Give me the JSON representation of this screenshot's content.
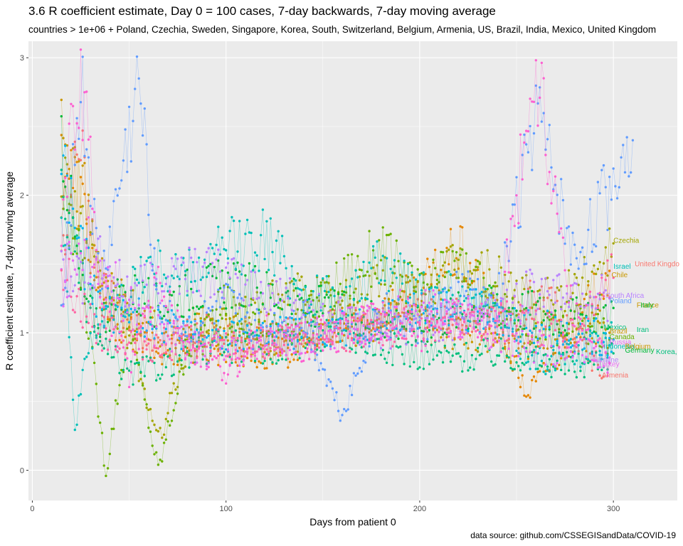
{
  "chart_data": {
    "type": "scatter",
    "title": "3.6 R coefficient estimate, Day 0 = 100 cases, 7-day backwards, 7-day moving average",
    "subtitle": "countries > 1e+06 + Poland, Czechia, Sweden, Singapore, Korea, South, Switzerland, Belgium, Armenia, US, Brazil, India, Mexico, United Kingdom",
    "caption": "data source: github.com/CSSEGISandData/COVID-19",
    "xlabel": "Days from patient 0",
    "ylabel": "R coefficient estimate, 7-day moving average",
    "xlim": [
      -2,
      333
    ],
    "ylim": [
      -0.22,
      3.12
    ],
    "x_ticks": [
      0,
      100,
      200,
      300
    ],
    "y_ticks": [
      0,
      1,
      2,
      3
    ],
    "grid": true,
    "legend": "none",
    "series": [
      {
        "color": "#F8766D",
        "x": [
          15,
          25,
          35,
          50,
          65,
          80,
          100,
          120,
          140,
          160,
          180,
          200,
          220,
          240,
          260,
          280,
          295
        ],
        "y": [
          1.6,
          2.4,
          1.3,
          1.1,
          0.9,
          1.0,
          1.0,
          0.95,
          1.05,
          1.1,
          1.05,
          1.2,
          1.1,
          1.0,
          1.3,
          1.0,
          0.68
        ]
      },
      {
        "color": "#E58700",
        "x": [
          15,
          25,
          35,
          50,
          65,
          80,
          100,
          120,
          140,
          160,
          180,
          200,
          220,
          240,
          255,
          275,
          298
        ],
        "y": [
          2.3,
          2.0,
          1.2,
          1.0,
          0.85,
          0.9,
          0.88,
          0.82,
          0.9,
          1.0,
          1.15,
          1.3,
          1.6,
          1.1,
          0.55,
          0.9,
          1.45
        ]
      },
      {
        "color": "#C99800",
        "x": [
          15,
          25,
          35,
          50,
          65,
          80,
          100,
          120,
          140,
          160,
          180,
          200,
          220,
          240,
          260,
          280,
          298
        ],
        "y": [
          2.4,
          2.1,
          1.4,
          1.2,
          1.0,
          1.1,
          1.0,
          0.95,
          1.0,
          1.05,
          1.1,
          1.05,
          1.0,
          0.9,
          0.95,
          1.0,
          1.0
        ]
      },
      {
        "color": "#A3A500",
        "x": [
          15,
          25,
          35,
          50,
          65,
          80,
          100,
          120,
          140,
          160,
          180,
          200,
          220,
          240,
          260,
          280,
          300
        ],
        "y": [
          2.2,
          1.8,
          1.3,
          1.0,
          0.2,
          0.9,
          1.1,
          1.2,
          1.3,
          1.2,
          1.4,
          1.25,
          1.5,
          1.4,
          1.2,
          1.3,
          1.65
        ]
      },
      {
        "color": "#6BB100",
        "x": [
          15,
          25,
          38,
          50,
          65,
          80,
          100,
          120,
          140,
          160,
          180,
          200,
          220,
          240,
          260,
          280,
          298
        ],
        "y": [
          1.9,
          1.5,
          0.0,
          1.1,
          0.0,
          0.9,
          1.2,
          1.0,
          1.1,
          1.4,
          1.6,
          1.3,
          1.5,
          1.2,
          1.0,
          1.1,
          0.95
        ]
      },
      {
        "color": "#00BA38",
        "x": [
          15,
          25,
          35,
          50,
          65,
          80,
          100,
          120,
          140,
          160,
          180,
          200,
          220,
          240,
          260,
          280,
          300
        ],
        "y": [
          2.5,
          1.3,
          1.1,
          1.3,
          1.2,
          1.3,
          1.35,
          1.3,
          1.2,
          1.15,
          1.1,
          1.05,
          1.15,
          1.2,
          1.15,
          1.1,
          1.18
        ]
      },
      {
        "color": "#00BF7D",
        "x": [
          15,
          25,
          35,
          50,
          65,
          80,
          100,
          120,
          140,
          160,
          180,
          200,
          220,
          240,
          260,
          280,
          300
        ],
        "y": [
          2.0,
          1.4,
          0.9,
          0.7,
          0.75,
          0.85,
          0.9,
          0.88,
          0.95,
          1.0,
          0.9,
          0.85,
          0.82,
          0.85,
          0.8,
          0.75,
          0.85
        ]
      },
      {
        "color": "#00C0B8",
        "x": [
          15,
          22,
          30,
          45,
          60,
          80,
          100,
          120,
          140,
          160,
          180,
          200,
          220,
          240,
          260,
          280,
          300
        ],
        "y": [
          2.1,
          0.3,
          1.0,
          1.2,
          1.5,
          1.4,
          1.6,
          1.7,
          1.3,
          1.2,
          1.5,
          1.35,
          1.3,
          1.1,
          0.8,
          0.85,
          0.95
        ]
      },
      {
        "color": "#00B4EF",
        "x": [
          15,
          25,
          35,
          50,
          65,
          80,
          100,
          120,
          140,
          160,
          180,
          200,
          220,
          240,
          260,
          280,
          300
        ],
        "y": [
          2.3,
          1.6,
          1.2,
          1.1,
          1.1,
          1.0,
          0.95,
          1.0,
          1.0,
          1.05,
          1.1,
          1.15,
          1.2,
          1.1,
          1.05,
          1.0,
          0.95
        ]
      },
      {
        "color": "#619CFF",
        "x": [
          15,
          25,
          35,
          55,
          65,
          80,
          100,
          120,
          140,
          160,
          180,
          200,
          220,
          240,
          260,
          280,
          310
        ],
        "y": [
          1.2,
          2.8,
          1.3,
          2.8,
          1.2,
          1.0,
          1.2,
          1.0,
          1.1,
          0.4,
          1.2,
          1.0,
          1.3,
          1.2,
          2.6,
          1.5,
          2.4
        ]
      },
      {
        "color": "#B983FF",
        "x": [
          15,
          25,
          35,
          50,
          65,
          80,
          100,
          120,
          140,
          160,
          180,
          200,
          220,
          240,
          260,
          280,
          298
        ],
        "y": [
          1.5,
          1.4,
          1.5,
          1.3,
          1.4,
          1.5,
          1.4,
          1.3,
          1.2,
          1.1,
          1.0,
          1.05,
          1.1,
          1.2,
          1.3,
          1.3,
          1.25
        ]
      },
      {
        "color": "#E76BF3",
        "x": [
          15,
          25,
          35,
          50,
          65,
          80,
          100,
          120,
          140,
          160,
          180,
          200,
          220,
          240,
          260,
          280,
          298
        ],
        "y": [
          1.3,
          1.7,
          1.5,
          1.2,
          1.0,
          0.9,
          0.85,
          0.9,
          0.95,
          1.05,
          1.1,
          1.2,
          1.1,
          1.0,
          0.9,
          0.85,
          0.82
        ]
      },
      {
        "color": "#FD61D1",
        "x": [
          15,
          25,
          35,
          50,
          65,
          80,
          100,
          120,
          140,
          160,
          180,
          200,
          220,
          240,
          260,
          280,
          298
        ],
        "y": [
          1.8,
          2.9,
          1.4,
          0.7,
          1.4,
          0.9,
          0.7,
          1.0,
          0.9,
          1.0,
          1.1,
          1.0,
          1.15,
          1.05,
          2.9,
          1.1,
          0.78
        ]
      },
      {
        "color": "#FF67A4",
        "x": [
          15,
          25,
          35,
          50,
          65,
          80,
          100,
          120,
          140,
          160,
          180,
          200,
          220,
          240,
          260,
          280,
          300
        ],
        "y": [
          1.5,
          1.2,
          1.0,
          0.95,
          0.9,
          0.95,
          0.9,
          0.9,
          0.95,
          1.0,
          1.0,
          1.1,
          1.05,
          1.1,
          1.05,
          1.0,
          1.4
        ]
      }
    ],
    "labels": [
      {
        "text": "Czechia",
        "x": 300,
        "y": 1.67,
        "color": "#A3A500"
      },
      {
        "text": "United Kingdo",
        "x": 311,
        "y": 1.5,
        "color": "#F8766D"
      },
      {
        "text": "Israel",
        "x": 300,
        "y": 1.48,
        "color": "#00C0B8"
      },
      {
        "text": "Chile",
        "x": 299,
        "y": 1.42,
        "color": "#C99800"
      },
      {
        "text": "South Africa",
        "x": 296,
        "y": 1.27,
        "color": "#B983FF"
      },
      {
        "text": "Poland",
        "x": 298,
        "y": 1.23,
        "color": "#619CFF"
      },
      {
        "text": "France",
        "x": 312,
        "y": 1.2,
        "color": "#C99800"
      },
      {
        "text": "Italy",
        "x": 314,
        "y": 1.2,
        "color": "#00BA38"
      },
      {
        "text": "Mexico",
        "x": 295,
        "y": 1.04,
        "color": "#00BF7D"
      },
      {
        "text": "Iran",
        "x": 312,
        "y": 1.02,
        "color": "#00BF7D"
      },
      {
        "text": "Brazil",
        "x": 298,
        "y": 1.01,
        "color": "#C99800"
      },
      {
        "text": "Canada",
        "x": 298,
        "y": 0.97,
        "color": "#6BB100"
      },
      {
        "text": "Russia",
        "x": 298,
        "y": 0.93,
        "color": "#E76BF3"
      },
      {
        "text": "Indonesia",
        "x": 295,
        "y": 0.9,
        "color": "#00C0B8"
      },
      {
        "text": "Belgium",
        "x": 306,
        "y": 0.9,
        "color": "#C99800"
      },
      {
        "text": "Germany",
        "x": 306,
        "y": 0.87,
        "color": "#00BA38"
      },
      {
        "text": "Korea,",
        "x": 322,
        "y": 0.86,
        "color": "#00BF7D"
      },
      {
        "text": "Ukraine",
        "x": 290,
        "y": 0.8,
        "color": "#B983FF"
      },
      {
        "text": "Turkey",
        "x": 292,
        "y": 0.77,
        "color": "#E76BF3"
      },
      {
        "text": "Armenia",
        "x": 294,
        "y": 0.69,
        "color": "#F8766D"
      }
    ]
  }
}
